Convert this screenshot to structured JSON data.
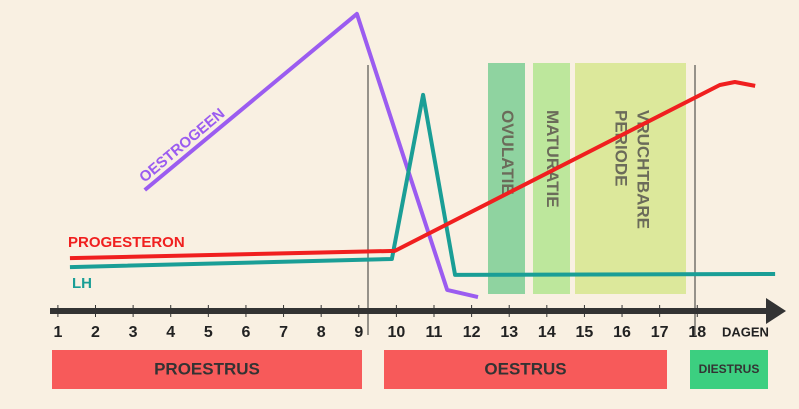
{
  "chart_data": {
    "type": "line",
    "x_axis_label": "DAGEN",
    "xlim": [
      0.79,
      20.2
    ],
    "ylim": [
      0,
      100
    ],
    "xticks": [
      1,
      2,
      3,
      4,
      5,
      6,
      7,
      8,
      9,
      10,
      11,
      12,
      13,
      14,
      15,
      16,
      17,
      18
    ],
    "series": [
      {
        "name": "OESTROGEEN",
        "color": "#9b5cf0",
        "x": [
          3.31,
          8.95,
          11.35,
          12.17
        ],
        "values": [
          40,
          98.7,
          6.7,
          4.3
        ]
      },
      {
        "name": "LH",
        "color": "#1a9e96",
        "x": [
          1.32,
          9.88,
          10.71,
          11.56,
          20.07
        ],
        "values": [
          14.3,
          17,
          71.7,
          11.7,
          12
        ]
      },
      {
        "name": "PROGESTERON",
        "color": "#f01f1f",
        "x": [
          1.32,
          9.96,
          18.6,
          19.0,
          19.54
        ],
        "values": [
          17.3,
          19.7,
          75,
          76,
          74.7
        ]
      }
    ],
    "bands": [
      "OVULATIE",
      "MATURATIE",
      "VRUCHTBARE PERIODE"
    ],
    "phases": [
      "PROESTRUS",
      "OESTRUS",
      "DIESTRUS"
    ]
  }
}
